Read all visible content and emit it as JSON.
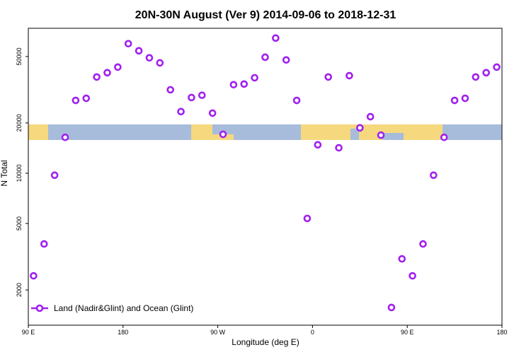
{
  "chart_data": {
    "type": "scatter",
    "title": "20N-30N August (Ver 9)   2014-09-06 to 2018-12-31",
    "x_label": "Longitude (deg E)",
    "y_label": "N Total",
    "log_y": true,
    "legend": "bottom-left",
    "xlim": [
      90,
      540
    ],
    "xticks": [
      {
        "value": 90,
        "label": "90 E"
      },
      {
        "value": 180,
        "label": "180"
      },
      {
        "value": 270,
        "label": "90 W"
      },
      {
        "value": 360,
        "label": "0"
      },
      {
        "value": 450,
        "label": "90 E"
      },
      {
        "value": 540,
        "label": "180"
      }
    ],
    "ylim": [
      1230,
      73800
    ],
    "yticks": [
      2000,
      5000,
      10000,
      20000,
      50000
    ],
    "x": [
      95,
      105,
      115,
      125,
      135,
      145,
      155,
      165,
      175,
      185,
      195,
      205,
      215,
      225,
      235,
      245,
      255,
      265,
      275,
      285,
      295,
      305,
      315,
      325,
      335,
      345,
      355,
      365,
      375,
      385,
      395,
      405,
      415,
      425,
      435,
      445,
      455,
      465,
      475,
      485,
      495,
      505,
      515,
      525,
      535
    ],
    "series": [
      {
        "name": "Land (Nadir&Glint) and Ocean (Glint)",
        "color": "#a020f0",
        "values": [
          2430,
          3770,
          9730,
          16400,
          27300,
          28100,
          37700,
          40000,
          43200,
          59700,
          54100,
          49100,
          45800,
          31600,
          23400,
          28400,
          29300,
          22900,
          17100,
          33900,
          34200,
          37300,
          49500,
          64500,
          47700,
          27300,
          5360,
          14800,
          37700,
          14200,
          38400,
          18700,
          21800,
          16900,
          1570,
          3070,
          2430,
          3770,
          9730,
          16400,
          27300,
          28100,
          37700,
          40000,
          43200
        ]
      }
    ]
  }
}
